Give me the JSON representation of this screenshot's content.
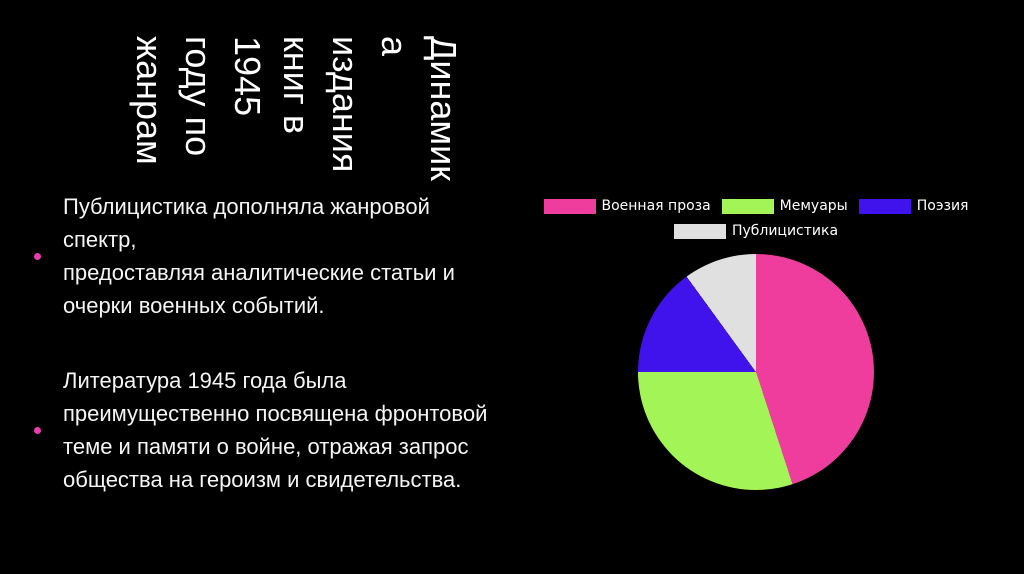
{
  "slide": {
    "title": "Динамик\nа\nиздания\nкниг в\n1945\nгоду по\nжанрам",
    "background": "#000000"
  },
  "bullets": [
    {
      "text": "Публицистика дополняла жанровой спектр,\nпредоставляя аналитические статьи и\nочерки военных событий."
    },
    {
      "text": "Литература 1945 года была\nпреимущественно посвящена фронтовой\nтеме и памяти о войне, отражая запрос\nобщества на героизм и свидетельства."
    }
  ],
  "colors": {
    "bullet_dot": "#e93cac",
    "title_text": "#ffffff",
    "body_text": "#f5f5f5",
    "legend_text": "#ffffff",
    "background": "#000000"
  },
  "chart_data": {
    "type": "pie",
    "labels": [
      "Военная проза",
      "Мемуары",
      "Поэзия",
      "Публицистика"
    ],
    "values": [
      45,
      30,
      15,
      10
    ],
    "colors": [
      "#ee3d9c",
      "#a3f457",
      "#4013ec",
      "#e0e0e0"
    ],
    "start_angle_deg": 0,
    "direction": "clockwise",
    "legend_position": "top",
    "title": ""
  }
}
